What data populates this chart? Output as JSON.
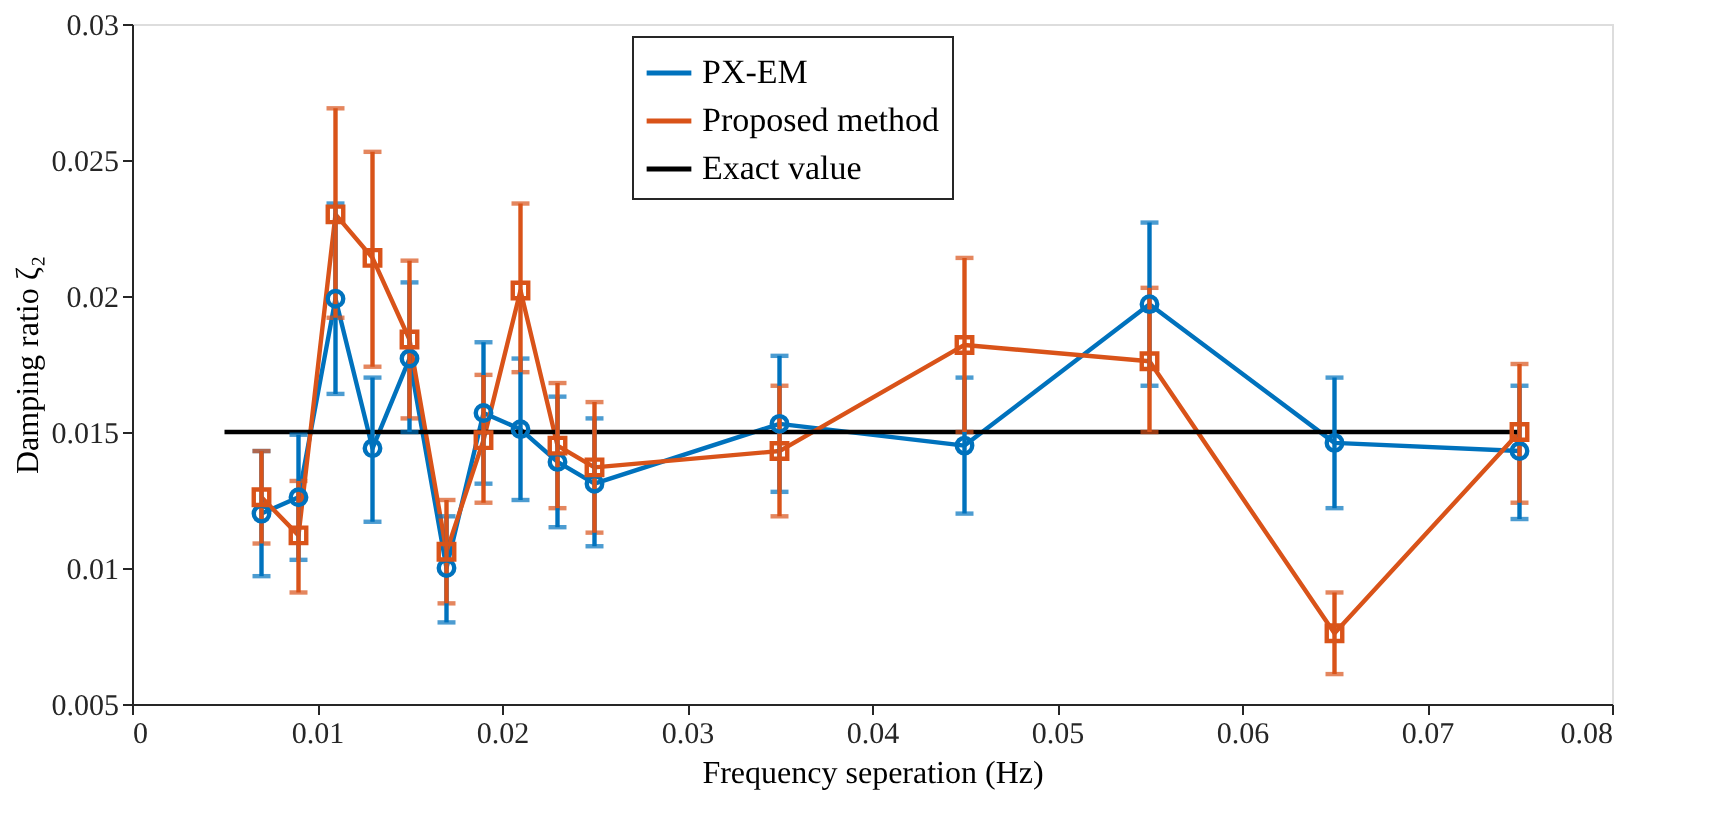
{
  "chart_data": {
    "type": "line",
    "xlabel": "Frequency seperation (Hz)",
    "ylabel": "Damping ratio ζ₂",
    "x": [
      0.007,
      0.009,
      0.011,
      0.013,
      0.015,
      0.017,
      0.019,
      0.021,
      0.023,
      0.025,
      0.035,
      0.045,
      0.055,
      0.065,
      0.075
    ],
    "series": [
      {
        "name": "PX-EM",
        "color": "#0072bd",
        "marker": "circle",
        "values": [
          0.012,
          0.0126,
          0.0199,
          0.0144,
          0.0177,
          0.01,
          0.0157,
          0.0151,
          0.0139,
          0.0131,
          0.0153,
          0.0145,
          0.0197,
          0.0146,
          0.0143
        ],
        "errors": [
          [
            0.0097,
            0.0143
          ],
          [
            0.0103,
            0.0149
          ],
          [
            0.0164,
            0.0234
          ],
          [
            0.0117,
            0.017
          ],
          [
            0.015,
            0.0205
          ],
          [
            0.008,
            0.0119
          ],
          [
            0.0131,
            0.0183
          ],
          [
            0.0125,
            0.0177
          ],
          [
            0.0115,
            0.0163
          ],
          [
            0.0108,
            0.0155
          ],
          [
            0.0128,
            0.0178
          ],
          [
            0.012,
            0.017
          ],
          [
            0.0167,
            0.0227
          ],
          [
            0.0122,
            0.017
          ],
          [
            0.0118,
            0.0167
          ]
        ]
      },
      {
        "name": "Proposed method",
        "color": "#d95319",
        "marker": "square",
        "values": [
          0.0126,
          0.0112,
          0.023,
          0.0214,
          0.0184,
          0.0106,
          0.0147,
          0.0202,
          0.0145,
          0.0137,
          0.0143,
          0.0182,
          0.0176,
          0.0076,
          0.015
        ],
        "errors": [
          [
            0.0109,
            0.0143
          ],
          [
            0.0091,
            0.0132
          ],
          [
            0.0192,
            0.0269
          ],
          [
            0.0174,
            0.0253
          ],
          [
            0.0155,
            0.0213
          ],
          [
            0.0087,
            0.0125
          ],
          [
            0.0124,
            0.0171
          ],
          [
            0.0172,
            0.0234
          ],
          [
            0.0122,
            0.0168
          ],
          [
            0.0113,
            0.0161
          ],
          [
            0.0119,
            0.0167
          ],
          [
            0.015,
            0.0214
          ],
          [
            0.015,
            0.0203
          ],
          [
            0.0061,
            0.0091
          ],
          [
            0.0124,
            0.0175
          ]
        ]
      },
      {
        "name": "Exact value",
        "color": "#000000",
        "marker": "none",
        "x": [
          0.005,
          0.075
        ],
        "values": [
          0.015,
          0.015
        ]
      }
    ],
    "xlim": [
      0,
      0.08
    ],
    "xticks": [
      0,
      0.01,
      0.02,
      0.03,
      0.04,
      0.05,
      0.06,
      0.07,
      0.08
    ],
    "ylim": [
      0.005,
      0.03
    ],
    "yticks": [
      0.005,
      0.01,
      0.015,
      0.02,
      0.025,
      0.03
    ],
    "grid": false,
    "legend": "top"
  }
}
